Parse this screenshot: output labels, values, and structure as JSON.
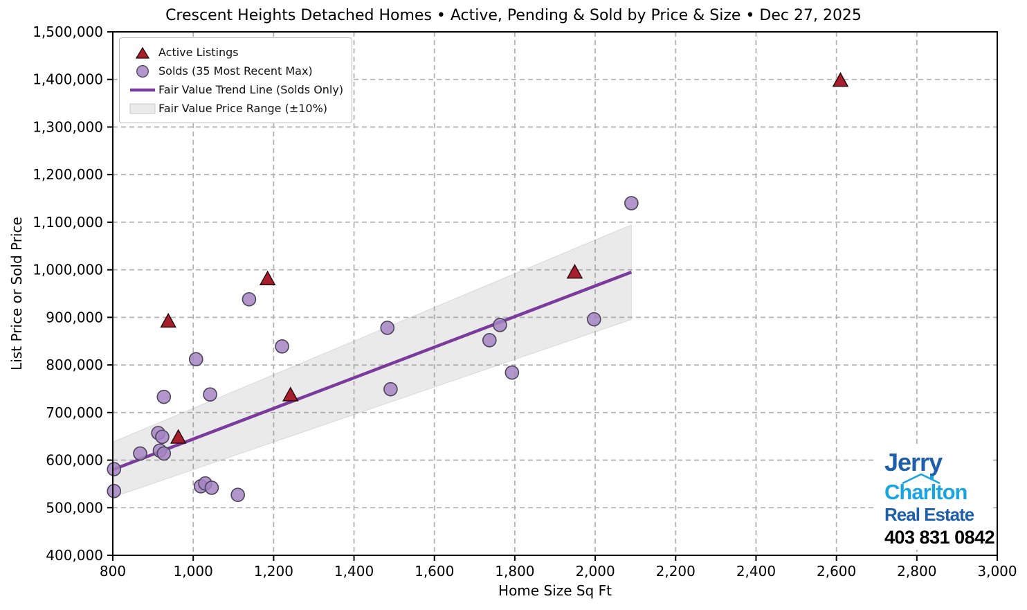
{
  "chart_data": {
    "type": "scatter",
    "title": "Crescent Heights Detached Homes • Active, Pending & Sold by Price & Size • Dec 27, 2025",
    "xlabel": "Home Size Sq Ft",
    "ylabel": "List Price or Sold Price",
    "xlim": [
      800,
      3000
    ],
    "ylim": [
      400000,
      1500000
    ],
    "grid": true,
    "legend_position": "upper-left",
    "x_ticks": [
      800,
      1000,
      1200,
      1400,
      1600,
      1800,
      2000,
      2200,
      2400,
      2600,
      2800,
      3000
    ],
    "x_tick_labels": [
      "800",
      "1,000",
      "1,200",
      "1,400",
      "1,600",
      "1,800",
      "2,000",
      "2,200",
      "2,400",
      "2,600",
      "2,800",
      "3,000"
    ],
    "y_ticks": [
      400000,
      500000,
      600000,
      700000,
      800000,
      900000,
      1000000,
      1100000,
      1200000,
      1300000,
      1400000,
      1500000
    ],
    "y_tick_labels": [
      "400,000",
      "500,000",
      "600,000",
      "700,000",
      "800,000",
      "900,000",
      "1,000,000",
      "1,100,000",
      "1,200,000",
      "1,300,000",
      "1,400,000",
      "1,500,000"
    ],
    "series": [
      {
        "name": "Active Listings",
        "type": "scatter",
        "marker": "triangle",
        "points": [
          [
            938,
            892000
          ],
          [
            963,
            648000
          ],
          [
            1185,
            981000
          ],
          [
            1242,
            737000
          ],
          [
            1949,
            995000
          ],
          [
            2610,
            1398000
          ]
        ]
      },
      {
        "name": "Solds (35 Most Recent Max)",
        "type": "scatter",
        "marker": "circle",
        "points": [
          [
            803,
            581000
          ],
          [
            803,
            535000
          ],
          [
            868,
            614000
          ],
          [
            913,
            657000
          ],
          [
            923,
            649000
          ],
          [
            917,
            620000
          ],
          [
            927,
            614000
          ],
          [
            927,
            733000
          ],
          [
            1007,
            812000
          ],
          [
            1042,
            738000
          ],
          [
            1019,
            545000
          ],
          [
            1030,
            551000
          ],
          [
            1046,
            542000
          ],
          [
            1111,
            527000
          ],
          [
            1139,
            938000
          ],
          [
            1221,
            839000
          ],
          [
            1483,
            878000
          ],
          [
            1491,
            749000
          ],
          [
            1737,
            852000
          ],
          [
            1763,
            884000
          ],
          [
            1793,
            784000
          ],
          [
            1997,
            896000
          ],
          [
            2090,
            1140000
          ]
        ]
      },
      {
        "name": "Fair Value Trend Line (Solds Only)",
        "type": "line",
        "points": [
          [
            800,
            580000
          ],
          [
            2090,
            995000
          ]
        ]
      },
      {
        "name": "Fair Value Price Range (±10%)",
        "type": "band",
        "points_upper": [
          [
            800,
            638000
          ],
          [
            2090,
            1094500
          ]
        ],
        "points_lower": [
          [
            800,
            522000
          ],
          [
            2090,
            895500
          ]
        ]
      }
    ],
    "legend": {
      "entries": [
        {
          "label": "Active Listings",
          "marker": "triangle"
        },
        {
          "label": "Solds (35 Most Recent Max)",
          "marker": "circle"
        },
        {
          "label": "Fair Value Trend Line (Solds Only)",
          "marker": "line"
        },
        {
          "label": "Fair Value Price Range (±10%)",
          "marker": "band"
        }
      ]
    }
  },
  "colors": {
    "active_fill": "#a81e2c",
    "active_edge": "#27090d",
    "sold_fill": "#a584c3",
    "sold_edge": "#4a4458",
    "trend": "#7a3b9d",
    "band": "#8c8c8c",
    "grid": "#b3b3b3",
    "axis": "#000000"
  },
  "branding": {
    "name_line1": "Jerry",
    "name_line2": "Charlton",
    "name_line3": "Real Estate",
    "phone": "403 831 0842",
    "name_color_primary": "#1f5fa9",
    "name_color_secondary": "#19a6e0",
    "phone_color": "#000000"
  }
}
